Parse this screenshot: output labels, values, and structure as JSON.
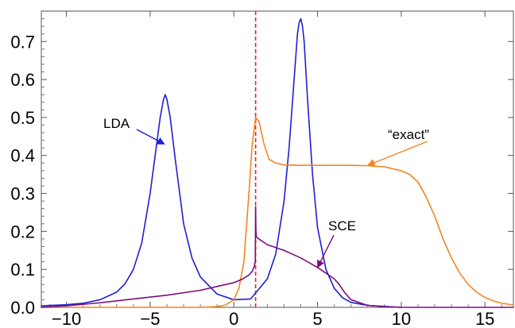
{
  "chart_data": {
    "type": "line",
    "title": "",
    "xlabel": "",
    "ylabel": "",
    "xlim": [
      -11.5,
      16.7
    ],
    "ylim": [
      0,
      0.78
    ],
    "grid": false,
    "x_ticks": [
      -10,
      -5,
      0,
      5,
      10,
      15
    ],
    "x_tick_labels": [
      "−10",
      "−5",
      "0",
      "5",
      "10",
      "15"
    ],
    "y_ticks": [
      0.0,
      0.1,
      0.2,
      0.3,
      0.4,
      0.5,
      0.6,
      0.7
    ],
    "y_tick_labels": [
      "0.0",
      "0.1",
      "0.2",
      "0.3",
      "0.4",
      "0.5",
      "0.6",
      "0.7"
    ],
    "vertical_line": {
      "x": 1.3,
      "color": "#e8202a",
      "style": "dashed"
    },
    "series": [
      {
        "name": "LDA",
        "color": "#1f1fd6",
        "x": [
          -11.5,
          -10,
          -9,
          -8,
          -7,
          -6.5,
          -6,
          -5.5,
          -5,
          -4.7,
          -4.4,
          -4.2,
          -4.1,
          -4.0,
          -3.8,
          -3.5,
          -3,
          -2.5,
          -2,
          -1,
          0,
          1,
          2,
          2.5,
          3,
          3.3,
          3.6,
          3.8,
          3.9,
          4.0,
          4.1,
          4.2,
          4.4,
          4.7,
          5,
          5.5,
          6,
          6.5,
          7,
          8,
          9,
          10
        ],
        "y": [
          0.004,
          0.007,
          0.011,
          0.02,
          0.04,
          0.062,
          0.1,
          0.17,
          0.3,
          0.4,
          0.5,
          0.548,
          0.56,
          0.548,
          0.5,
          0.39,
          0.22,
          0.13,
          0.08,
          0.035,
          0.02,
          0.022,
          0.075,
          0.14,
          0.28,
          0.42,
          0.6,
          0.72,
          0.75,
          0.76,
          0.74,
          0.7,
          0.55,
          0.35,
          0.21,
          0.1,
          0.05,
          0.025,
          0.013,
          0.005,
          0.002,
          0.0
        ]
      },
      {
        "name": "“exact”",
        "color": "#f5841f",
        "x": [
          -11.5,
          -2,
          -1,
          -0.5,
          0,
          0.3,
          0.6,
          0.9,
          1.1,
          1.3,
          1.5,
          1.8,
          2.1,
          2.5,
          3,
          4,
          5,
          6,
          7,
          8,
          9,
          10,
          10.5,
          11,
          11.5,
          12,
          12.5,
          13,
          13.5,
          14,
          14.5,
          15,
          15.5,
          16,
          16.7
        ],
        "y": [
          0.0,
          0.0,
          0.002,
          0.006,
          0.02,
          0.05,
          0.12,
          0.3,
          0.43,
          0.5,
          0.49,
          0.43,
          0.39,
          0.38,
          0.375,
          0.374,
          0.374,
          0.374,
          0.374,
          0.373,
          0.37,
          0.36,
          0.35,
          0.33,
          0.29,
          0.24,
          0.18,
          0.13,
          0.09,
          0.06,
          0.04,
          0.026,
          0.017,
          0.011,
          0.006
        ]
      },
      {
        "name": "SCE",
        "color": "#7a0f80",
        "x": [
          -11.5,
          -10,
          -8,
          -6,
          -4,
          -2,
          -1,
          0,
          0.5,
          0.9,
          1.1,
          1.2,
          1.28,
          1.3,
          1.32,
          1.35,
          1.5,
          2,
          3,
          4,
          5,
          5.5,
          6,
          6.3,
          6.6,
          7,
          8,
          10,
          12,
          16.7
        ],
        "y": [
          0.0,
          0.004,
          0.012,
          0.022,
          0.032,
          0.045,
          0.055,
          0.065,
          0.074,
          0.085,
          0.095,
          0.105,
          0.12,
          0.265,
          0.2,
          0.185,
          0.18,
          0.165,
          0.15,
          0.13,
          0.105,
          0.09,
          0.075,
          0.06,
          0.04,
          0.02,
          0.005,
          0.0,
          0.0,
          0.0
        ]
      }
    ],
    "annotations": [
      {
        "text": "LDA",
        "series": "LDA",
        "arrow_to": [
          -4.15,
          0.43
        ]
      },
      {
        "text": "“exact”",
        "series": "“exact”",
        "arrow_to": [
          8.0,
          0.374
        ]
      },
      {
        "text": "SCE",
        "series": "SCE",
        "arrow_to": [
          5.0,
          0.105
        ]
      }
    ]
  }
}
